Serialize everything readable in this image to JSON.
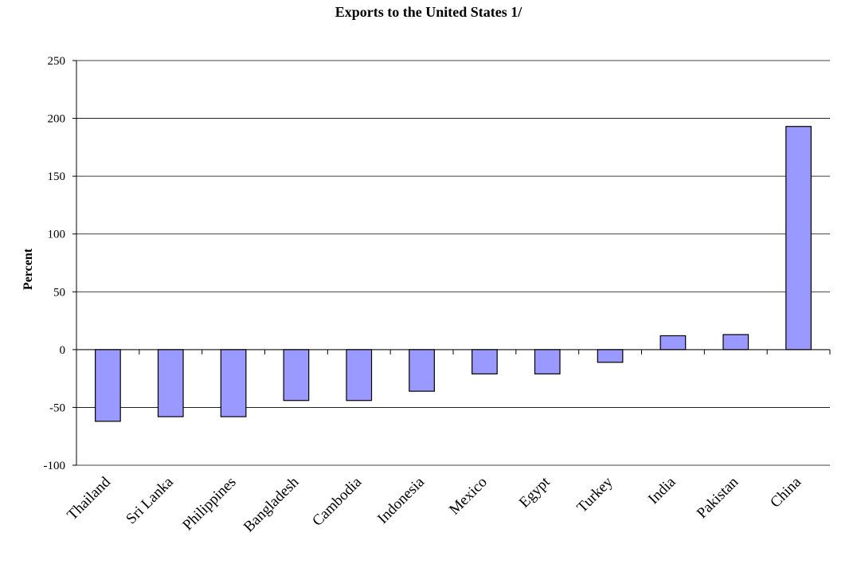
{
  "chart_data": {
    "type": "bar",
    "title": "Exports to the United States 1/",
    "xlabel": "",
    "ylabel": "Percent",
    "categories": [
      "Thailand",
      "Sri Lanka",
      "Philippines",
      "Bangladesh",
      "Cambodia",
      "Indonesia",
      "Mexico",
      "Egypt",
      "Turkey",
      "India",
      "Pakistan",
      "China"
    ],
    "values": [
      -62,
      -58,
      -58,
      -44,
      -44,
      -36,
      -21,
      -21,
      -11,
      12,
      13,
      193
    ],
    "ylim": [
      -100,
      250
    ],
    "yticks": [
      250,
      200,
      150,
      100,
      50,
      0,
      -50,
      -100
    ],
    "grid": true,
    "bar_color": "#9999ff"
  }
}
